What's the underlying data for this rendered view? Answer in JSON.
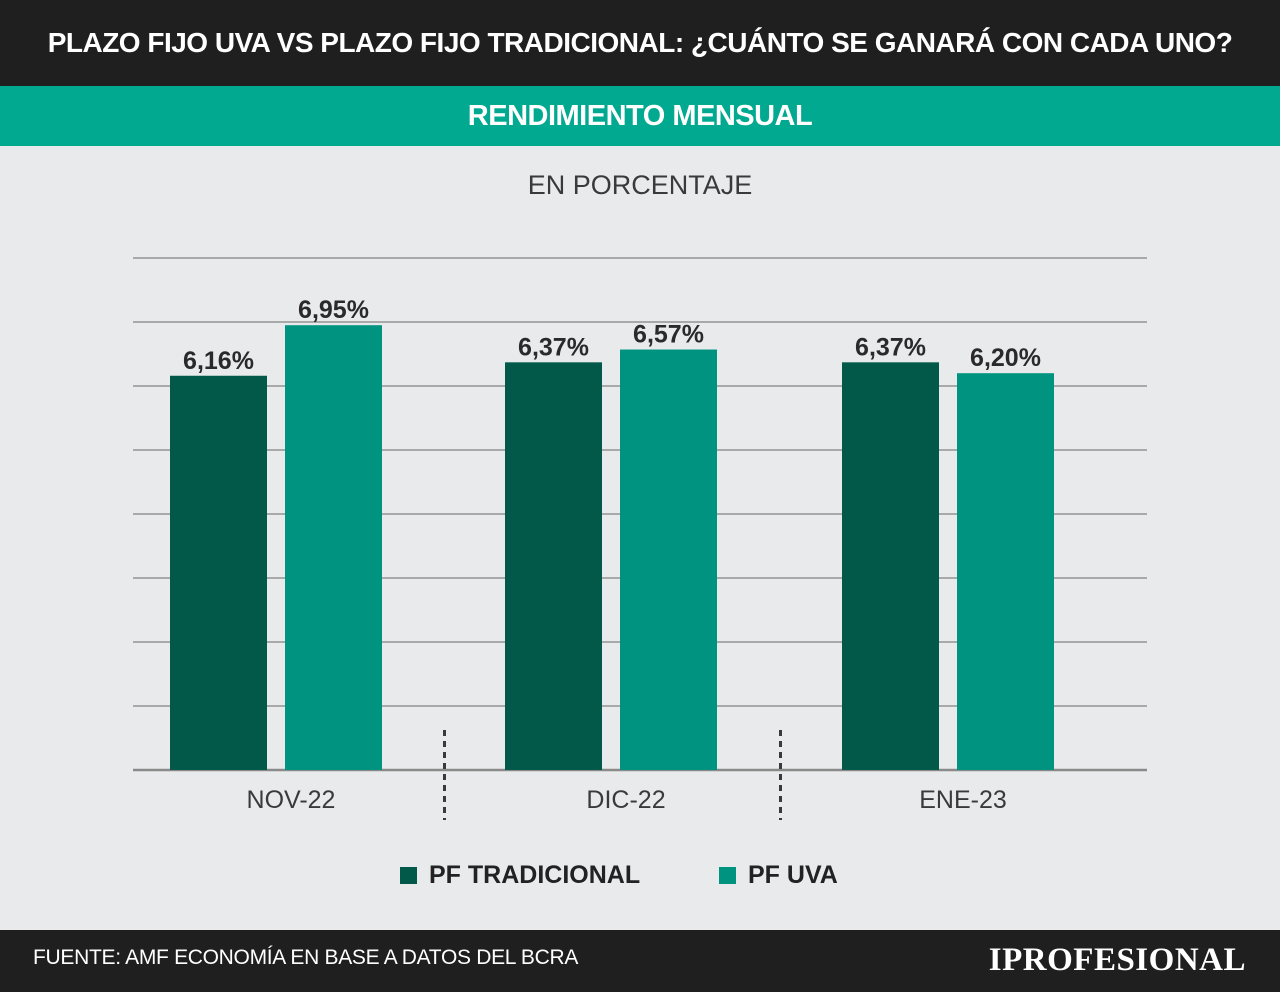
{
  "header": {
    "title": "PLAZO FIJO UVA VS PLAZO FIJO TRADICIONAL: ¿CUÁNTO SE GANARÁ CON CADA UNO?",
    "subtitle": "RENDIMIENTO MENSUAL"
  },
  "footer": {
    "source": "FUENTE: AMF ECONOMÍA EN BASE A DATOS DEL BCRA",
    "logo": "IPROFESIONAL"
  },
  "colors": {
    "pf_tradicional": "#02594a",
    "pf_uva": "#009480",
    "accent_bar": "#00a98f",
    "dark_bar": "#1f1f1f"
  },
  "chart_data": {
    "type": "bar",
    "title": "RENDIMIENTO MENSUAL",
    "unit_label": "EN PORCENTAJE",
    "categories": [
      "NOV-22",
      "DIC-22",
      "ENE-23"
    ],
    "series": [
      {
        "name": "PF TRADICIONAL",
        "values": [
          6.16,
          6.37,
          6.37
        ],
        "labels": [
          "6,16%",
          "6,37%",
          "6,37%"
        ],
        "color": "#02594a"
      },
      {
        "name": "PF UVA",
        "values": [
          6.95,
          6.57,
          6.2
        ],
        "labels": [
          "6,95%",
          "6,57%",
          "6,20%"
        ],
        "color": "#009480"
      }
    ],
    "ylim": [
      0,
      8
    ],
    "grid": true,
    "legend_position": "bottom"
  }
}
